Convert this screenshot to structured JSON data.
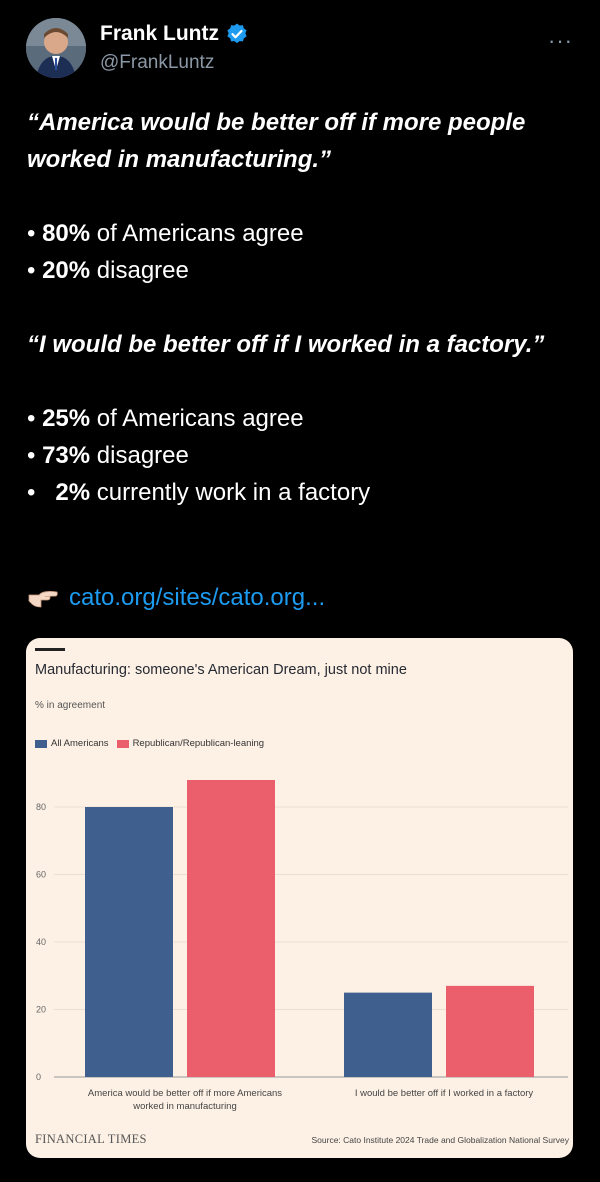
{
  "author": {
    "name": "Frank Luntz",
    "handle": "@FrankLuntz"
  },
  "tweet": {
    "quote1": "“America would be better off if more people worked in manufacturing.”",
    "bullets1": [
      {
        "value": "80%",
        "text": " of Americans agree"
      },
      {
        "value": "20%",
        "text": " disagree"
      }
    ],
    "quote2": "“I would be better off if I worked in a factory.”",
    "bullets2": [
      {
        "value": "25%",
        "text": " of Americans agree"
      },
      {
        "value": "73%",
        "text": " disagree"
      },
      {
        "value": "2%",
        "text": " currently work in a factory"
      }
    ],
    "link_text": "cato.org/sites/cato.org..."
  },
  "chart_data": {
    "type": "bar",
    "title": "Manufacturing: someone's American Dream, just not mine",
    "subtitle": "% in agreement",
    "categories": [
      "America would be better off if more Americans worked in manufacturing",
      "I would be better off if I worked in a factory"
    ],
    "series": [
      {
        "name": "All Americans",
        "values": [
          80,
          25
        ],
        "color": "#3f5f8f"
      },
      {
        "name": "Republican/Republican-leaning",
        "values": [
          88,
          27
        ],
        "color": "#eb5f6d"
      }
    ],
    "ylim": [
      0,
      90
    ],
    "yticks": [
      0,
      20,
      40,
      60,
      80
    ],
    "legend": "top-left",
    "grid": true
  },
  "card_footer": {
    "brand": "FINANCIAL TIMES",
    "source": "Source: Cato Institute 2024 Trade and Globalization National Survey"
  }
}
